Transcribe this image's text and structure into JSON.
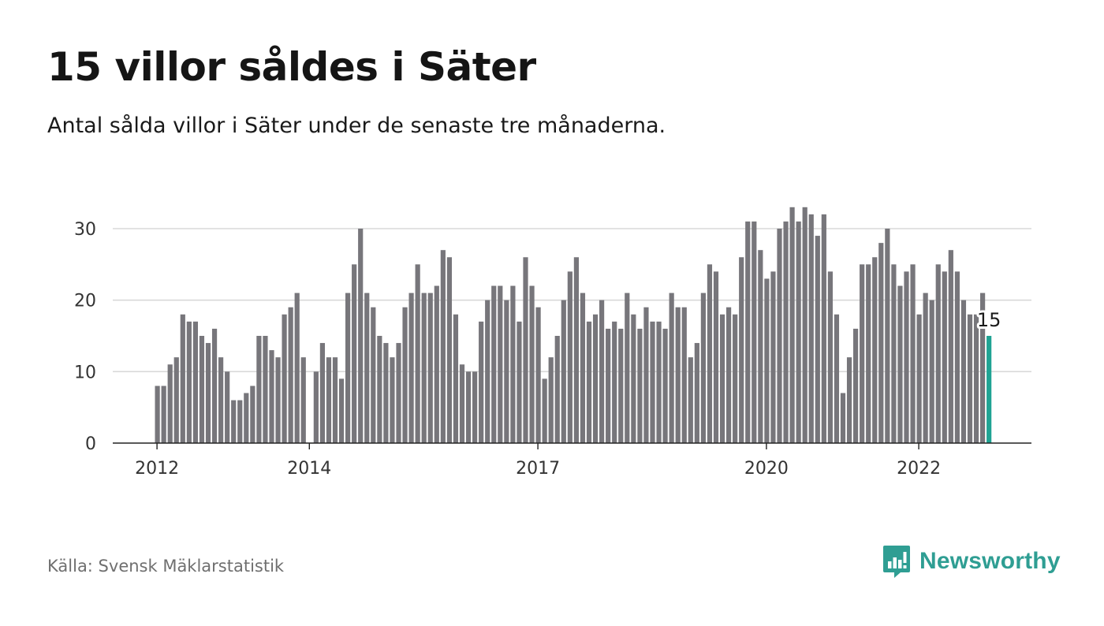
{
  "header": {
    "title": "15 villor såldes i Säter",
    "subtitle": "Antal sålda villor i Säter under de senaste tre månaderna."
  },
  "footer": {
    "source": "Källa: Svensk Mäklarstatistik",
    "brand": "Newsworthy",
    "brand_icon": "bar-chart-speech-bubble-icon"
  },
  "colors": {
    "bar": "#77767b",
    "highlight": "#1fa393",
    "grid": "#d9d9d9",
    "axis": "#222222",
    "brand": "#2f9e93"
  },
  "chart_data": {
    "type": "bar",
    "title": "15 villor såldes i Säter",
    "subtitle": "Antal sålda villor i Säter under de senaste tre månaderna.",
    "xlabel": "",
    "ylabel": "",
    "ylim": [
      0,
      35
    ],
    "yticks": [
      0,
      10,
      20,
      30
    ],
    "xtick_labels": [
      "2012",
      "2014",
      "2017",
      "2020",
      "2022"
    ],
    "grid": true,
    "highlight_last": true,
    "last_label": "15",
    "values": [
      8,
      8,
      11,
      12,
      18,
      17,
      17,
      15,
      14,
      16,
      12,
      10,
      6,
      6,
      7,
      8,
      15,
      15,
      13,
      12,
      18,
      19,
      21,
      12,
      0,
      10,
      14,
      12,
      12,
      9,
      21,
      25,
      30,
      21,
      19,
      15,
      14,
      12,
      14,
      19,
      21,
      25,
      21,
      21,
      22,
      27,
      26,
      18,
      11,
      10,
      10,
      17,
      20,
      22,
      22,
      20,
      22,
      17,
      26,
      22,
      19,
      9,
      12,
      15,
      20,
      24,
      26,
      21,
      17,
      18,
      20,
      16,
      17,
      16,
      21,
      18,
      16,
      19,
      17,
      17,
      16,
      21,
      19,
      19,
      12,
      14,
      21,
      25,
      24,
      18,
      19,
      18,
      26,
      31,
      31,
      27,
      23,
      24,
      30,
      31,
      33,
      31,
      33,
      32,
      29,
      32,
      24,
      18,
      7,
      12,
      16,
      25,
      25,
      26,
      28,
      30,
      25,
      22,
      24,
      25,
      18,
      21,
      20,
      25,
      24,
      27,
      24,
      20,
      18,
      18,
      21,
      15
    ]
  }
}
